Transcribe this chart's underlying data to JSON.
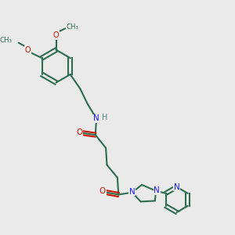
{
  "bg_color": "#eaeaea",
  "bond_color": "#2d6e50",
  "N_color": "#1a1aff",
  "O_color": "#cc1500",
  "H_color": "#4a8888",
  "lw": 1.5,
  "dbo": 0.009,
  "figsize": [
    3.0,
    3.0
  ],
  "dpi": 100,
  "xlim": [
    0,
    1
  ],
  "ylim": [
    0,
    1
  ]
}
